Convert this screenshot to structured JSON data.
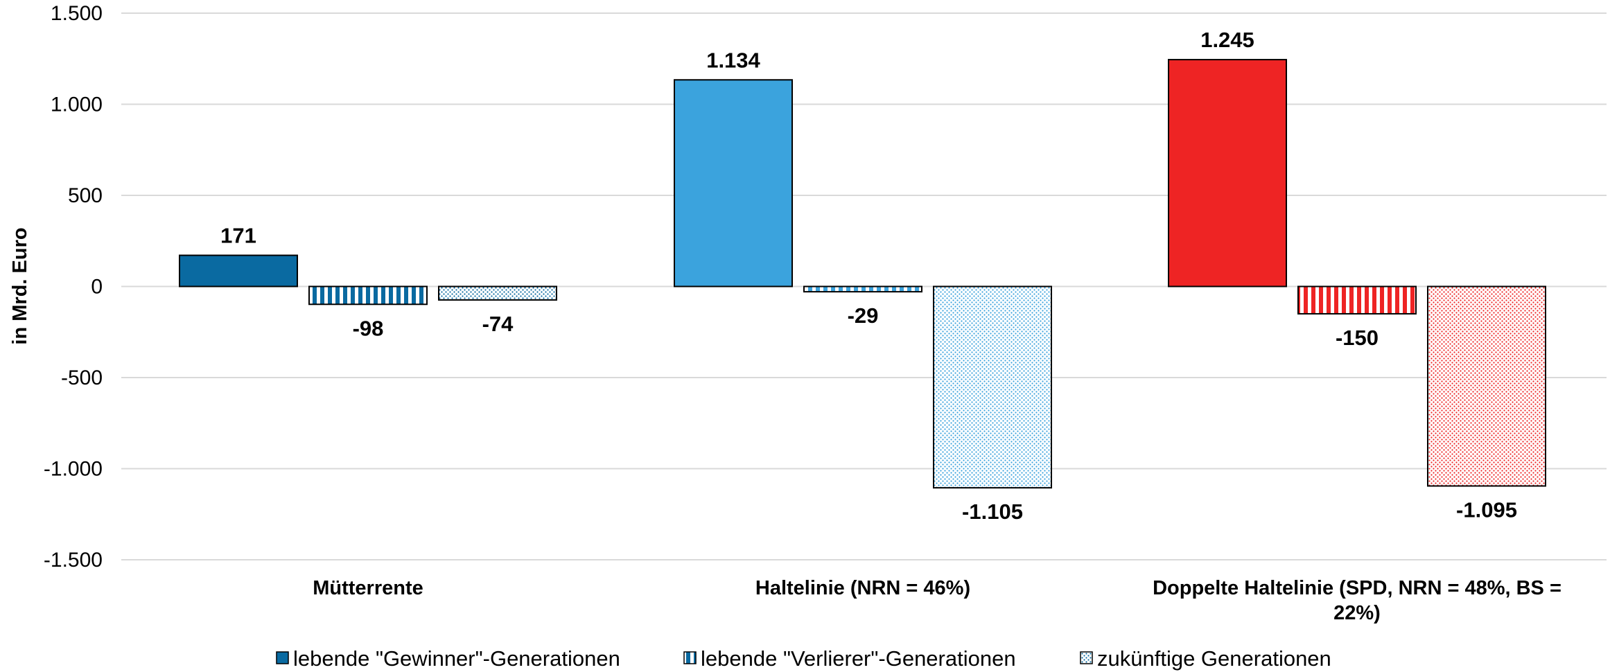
{
  "chart_data": {
    "type": "bar",
    "ylabel": "in Mrd. Euro",
    "ylim": [
      -1500,
      1500
    ],
    "yticks": [
      1500,
      1000,
      500,
      0,
      -500,
      -1000,
      -1500
    ],
    "ytick_labels": [
      "1.500",
      "1.000",
      "500",
      "0",
      "-500",
      "-1.000",
      "-1.500"
    ],
    "grid": true,
    "legend_position": "bottom",
    "categories": [
      {
        "label_lines": [
          "Mütterrente"
        ],
        "color": "#0a6aa1"
      },
      {
        "label_lines": [
          "Haltelinie (NRN = 46%)"
        ],
        "color": "#3ba3dd"
      },
      {
        "label_lines": [
          "Doppelte Haltelinie (SPD, NRN = 48%, BS =",
          "22%)"
        ],
        "color": "#ee2424"
      }
    ],
    "series": [
      {
        "name": "lebende \"Gewinner\"-Generationen",
        "pattern": "solid",
        "values": [
          171,
          1134,
          1245
        ],
        "labels": [
          "171",
          "1.134",
          "1.245"
        ]
      },
      {
        "name": "lebende \"Verlierer\"-Generationen",
        "pattern": "stripes",
        "values": [
          -98,
          -29,
          -150
        ],
        "labels": [
          "-98",
          "-29",
          "-150"
        ]
      },
      {
        "name": "zukünftige Generationen",
        "pattern": "dots",
        "values": [
          -74,
          -1105,
          -1095
        ],
        "labels": [
          "-74",
          "-1.105",
          "-1.095"
        ]
      }
    ],
    "legend_swatch_color": "#0a6aa1"
  }
}
